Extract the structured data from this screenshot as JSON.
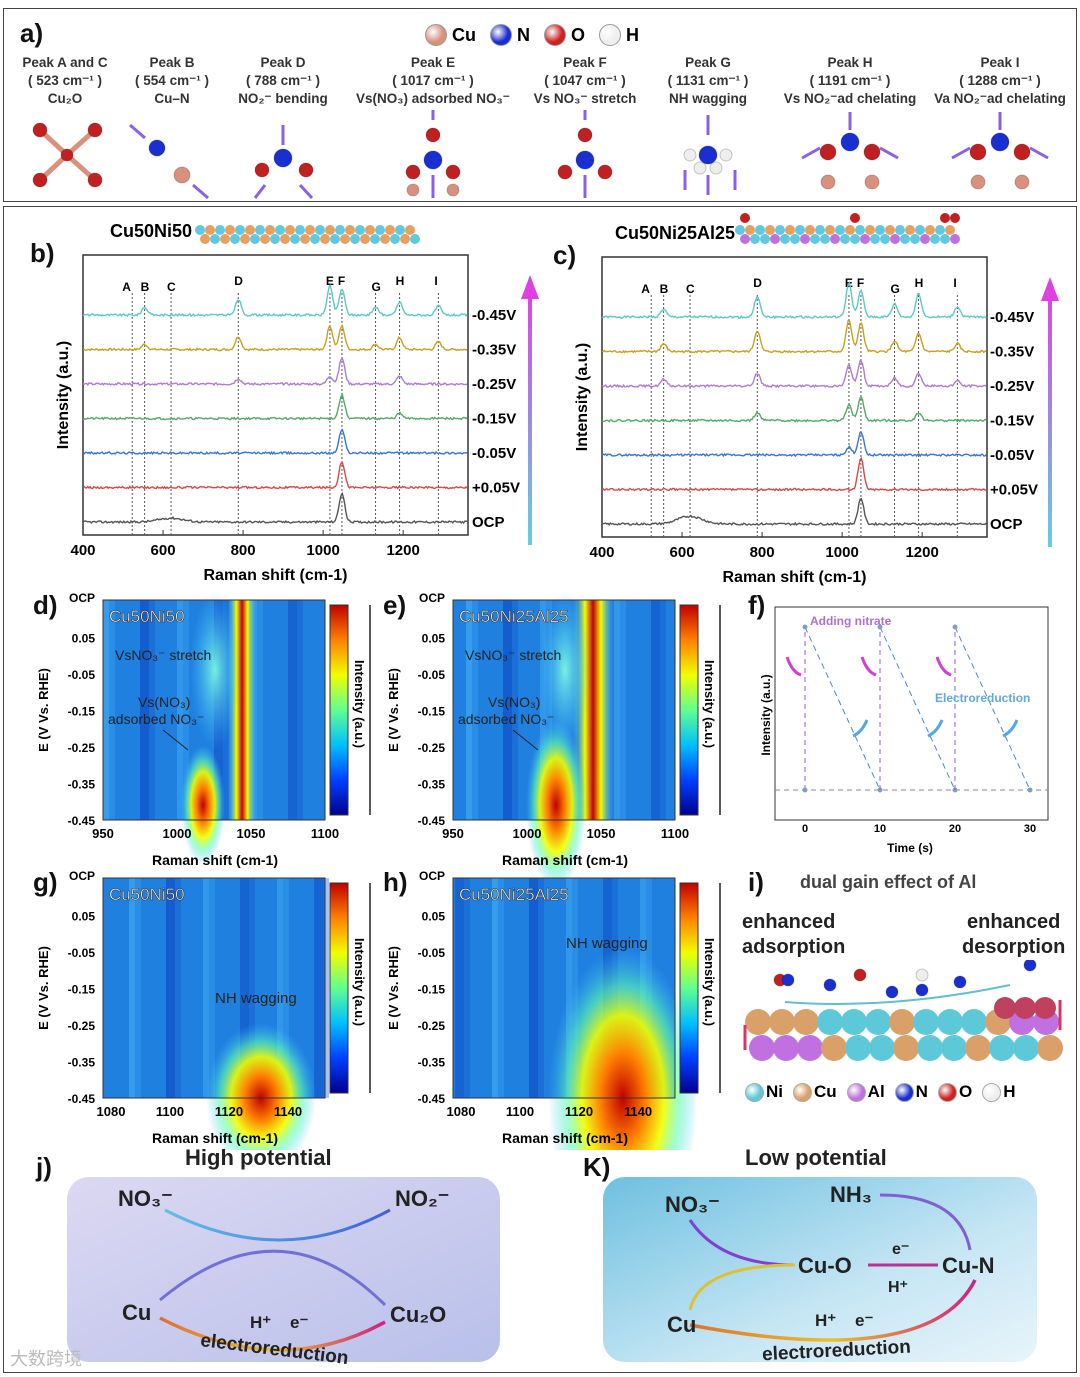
{
  "panel_labels": {
    "a": "a)",
    "b": "b)",
    "c": "c)",
    "d": "d)",
    "e": "e)",
    "f": "f)",
    "g": "g)",
    "h": "h)",
    "i": "i)",
    "j": "j)",
    "k": "K)"
  },
  "legend_a": [
    {
      "label": "Cu",
      "color": "#d9917e"
    },
    {
      "label": "N",
      "color": "#1a2fd0"
    },
    {
      "label": "O",
      "color": "#d02020"
    },
    {
      "label": "H",
      "color": "#eeeeee"
    }
  ],
  "peaks": [
    {
      "title": "Peak A and C",
      "wn": "( 523 cm⁻¹ )",
      "desc": "Cu₂O"
    },
    {
      "title": "Peak B",
      "wn": "( 554 cm⁻¹ )",
      "desc": "Cu–N"
    },
    {
      "title": "Peak D",
      "wn": "( 788 cm⁻¹ )",
      "desc": "NO₂⁻ bending"
    },
    {
      "title": "Peak E",
      "wn": "( 1017 cm⁻¹ )",
      "desc": "Vs(NO₃) adsorbed NO₃⁻"
    },
    {
      "title": "Peak F",
      "wn": "( 1047 cm⁻¹ )",
      "desc": "Vs NO₃⁻ stretch"
    },
    {
      "title": "Peak G",
      "wn": "( 1131 cm⁻¹ )",
      "desc": "NH wagging"
    },
    {
      "title": "Peak H",
      "wn": "( 1191 cm⁻¹ )",
      "desc": "Vs NO₂⁻ad chelating"
    },
    {
      "title": "Peak I",
      "wn": "( 1288 cm⁻¹ )",
      "desc": "Va NO₂⁻ad chelating"
    }
  ],
  "spectra": [
    {
      "sample": "Cu50Ni50",
      "xlabel": "Raman shift (cm-1)",
      "ylabel": "Intensity (a.u.)",
      "xticks": [
        "400",
        "600",
        "800",
        "1000",
        "1200"
      ],
      "xrange": [
        400,
        1362
      ],
      "peak_letters": [
        {
          "l": "A",
          "x": 523
        },
        {
          "l": "B",
          "x": 554
        },
        {
          "l": "C",
          "x": 620
        },
        {
          "l": "D",
          "x": 788
        },
        {
          "l": "E",
          "x": 1017
        },
        {
          "l": "F",
          "x": 1047
        },
        {
          "l": "G",
          "x": 1131
        },
        {
          "l": "H",
          "x": 1191
        },
        {
          "l": "I",
          "x": 1288
        }
      ]
    },
    {
      "sample": "Cu50Ni25Al25",
      "xlabel": "Raman shift (cm-1)",
      "ylabel": "Intensity (a.u.)",
      "xticks": [
        "400",
        "600",
        "800",
        "1000",
        "1200"
      ],
      "xrange": [
        400,
        1362
      ],
      "peak_letters": [
        {
          "l": "A",
          "x": 523
        },
        {
          "l": "B",
          "x": 554
        },
        {
          "l": "C",
          "x": 620
        },
        {
          "l": "D",
          "x": 788
        },
        {
          "l": "E",
          "x": 1017
        },
        {
          "l": "F",
          "x": 1047
        },
        {
          "l": "G",
          "x": 1131
        },
        {
          "l": "H",
          "x": 1191
        },
        {
          "l": "I",
          "x": 1288
        }
      ]
    }
  ],
  "potentials": [
    "-0.45V",
    "-0.35V",
    "-0.25V",
    "-0.15V",
    "-0.05V",
    "+0.05V",
    "OCP"
  ],
  "potential_colors": [
    "#5cc8c8",
    "#c9a020",
    "#b07ad8",
    "#55aa66",
    "#3a74d6",
    "#d84848",
    "#555555"
  ],
  "spectra_peaks": [
    [
      [
        [
          554,
          0.3
        ],
        [
          788,
          0.6
        ],
        [
          1017,
          1.1
        ],
        [
          1047,
          1.0
        ],
        [
          1131,
          0.3
        ],
        [
          1191,
          0.5
        ],
        [
          1288,
          0.35
        ]
      ],
      [
        [
          554,
          0.2
        ],
        [
          788,
          0.5
        ],
        [
          1017,
          0.9
        ],
        [
          1047,
          0.9
        ],
        [
          1131,
          0.2
        ],
        [
          1191,
          0.45
        ],
        [
          1288,
          0.3
        ]
      ],
      [
        [
          788,
          0.2
        ],
        [
          1017,
          0.3
        ],
        [
          1047,
          1.0
        ],
        [
          1191,
          0.3
        ]
      ],
      [
        [
          1047,
          0.9
        ],
        [
          1191,
          0.2
        ]
      ],
      [
        [
          1047,
          0.9
        ]
      ],
      [
        [
          1047,
          1.0
        ]
      ],
      [
        [
          1047,
          1.1
        ],
        [
          620,
          0.15
        ]
      ]
    ],
    [
      [
        [
          554,
          0.3
        ],
        [
          788,
          0.8
        ],
        [
          1017,
          1.3
        ],
        [
          1047,
          1.0
        ],
        [
          1131,
          0.5
        ],
        [
          1191,
          0.9
        ],
        [
          1288,
          0.4
        ]
      ],
      [
        [
          554,
          0.3
        ],
        [
          788,
          0.8
        ],
        [
          1017,
          1.2
        ],
        [
          1047,
          1.1
        ],
        [
          1131,
          0.4
        ],
        [
          1191,
          0.7
        ],
        [
          1288,
          0.3
        ]
      ],
      [
        [
          554,
          0.25
        ],
        [
          788,
          0.5
        ],
        [
          1017,
          0.8
        ],
        [
          1047,
          1.0
        ],
        [
          1131,
          0.3
        ],
        [
          1191,
          0.5
        ],
        [
          1288,
          0.2
        ]
      ],
      [
        [
          788,
          0.3
        ],
        [
          1017,
          0.6
        ],
        [
          1047,
          0.9
        ],
        [
          1191,
          0.3
        ]
      ],
      [
        [
          1017,
          0.3
        ],
        [
          1047,
          0.9
        ]
      ],
      [
        [
          1047,
          1.2
        ]
      ],
      [
        [
          1047,
          1.0
        ],
        [
          620,
          0.3
        ]
      ]
    ]
  ],
  "heatmaps": [
    {
      "sample": "Cu50Ni50",
      "xticks": [
        "950",
        "1000",
        "1050",
        "1100"
      ],
      "yticks": [
        "OCP",
        "0.05",
        "-0.05",
        "-0.15",
        "-0.25",
        "-0.35",
        "-0.45"
      ],
      "ylabel": "E (V Vs. RHE)",
      "xlabel": "Raman shift (cm-1)",
      "cbar": "Intensity (a.u.)",
      "ann1": "VsNO₃⁻ stretch",
      "ann2a": "Vs(NO₃)",
      "ann2b": "adsorbed NO₃⁻"
    },
    {
      "sample": "Cu50Ni25Al25",
      "xticks": [
        "950",
        "1000",
        "1050",
        "1100"
      ],
      "yticks": [
        "OCP",
        "0.05",
        "-0.05",
        "-0.15",
        "-0.25",
        "-0.35",
        "-0.45"
      ],
      "ylabel": "E (V Vs. RHE)",
      "xlabel": "Raman shift (cm-1)",
      "cbar": "Intensity (a.u.)",
      "ann1": "VsNO₃⁻ stretch",
      "ann2a": "Vs(NO₃)",
      "ann2b": "adsorbed NO₃⁻"
    },
    {
      "sample": "Cu50Ni50",
      "xticks": [
        "1080",
        "1100",
        "1120",
        "1140"
      ],
      "yticks": [
        "OCP",
        "0.05",
        "-0.05",
        "-0.15",
        "-0.25",
        "-0.35",
        "-0.45"
      ],
      "ylabel": "E (V Vs. RHE)",
      "xlabel": "Raman shift (cm-1)",
      "cbar": "Intensity (a.u.)",
      "ann1": "NH wagging"
    },
    {
      "sample": "Cu50Ni25Al25",
      "xticks": [
        "1080",
        "1100",
        "1120",
        "1140"
      ],
      "yticks": [
        "OCP",
        "0.05",
        "-0.05",
        "-0.15",
        "-0.25",
        "-0.35",
        "-0.45"
      ],
      "ylabel": "E (V Vs. RHE)",
      "xlabel": "Raman shift (cm-1)",
      "cbar": "Intensity (a.u.)",
      "ann1": "NH wagging"
    }
  ],
  "panel_f": {
    "xlabel": "Time (s)",
    "ylabel": "Intensity (a.u.)",
    "xticks": [
      "0",
      "10",
      "20",
      "30"
    ],
    "ann1": "Adding nitrate",
    "ann2": "Electroreduction"
  },
  "panel_i": {
    "title": "dual gain effect of Al",
    "left1": "enhanced",
    "left2": "adsorption",
    "right1": "enhanced",
    "right2": "desorption",
    "legend": [
      {
        "label": "Ni",
        "color": "#5cc8d8"
      },
      {
        "label": "Cu",
        "color": "#d9a06a"
      },
      {
        "label": "Al",
        "color": "#c070e0"
      },
      {
        "label": "N",
        "color": "#1a2fd0"
      },
      {
        "label": "O",
        "color": "#d02020"
      },
      {
        "label": "H",
        "color": "#eeeeee"
      }
    ]
  },
  "panel_j": {
    "title": "High potential",
    "no3": "NO₃⁻",
    "no2": "NO₂⁻",
    "cu": "Cu",
    "cu2o": "Cu₂O",
    "hplus": "H⁺",
    "eminus": "e⁻",
    "electro": "electroreduction"
  },
  "panel_k": {
    "title": "Low potential",
    "no3": "NO₃⁻",
    "nh3": "NH₃",
    "cuo": "Cu-O",
    "cun": "Cu-N",
    "cu": "Cu",
    "e": "e⁻",
    "h": "H⁺",
    "hplus": "H⁺",
    "eminus": "e⁻",
    "electro": "electroreduction"
  },
  "watermark": "大数跨境"
}
